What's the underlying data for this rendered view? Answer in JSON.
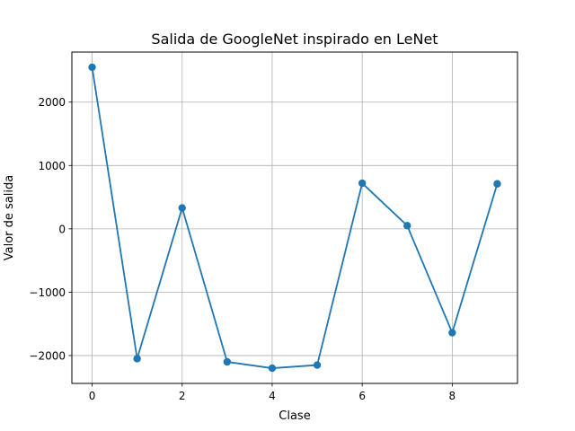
{
  "chart_data": {
    "type": "line",
    "title": "Salida de GoogleNet inspirado en LeNet",
    "xlabel": "Clase",
    "ylabel": "Valor de salida",
    "x": [
      0,
      1,
      2,
      3,
      4,
      5,
      6,
      7,
      8,
      9
    ],
    "series": [
      {
        "values": [
          2550,
          -2050,
          330,
          -2100,
          -2200,
          -2150,
          720,
          50,
          -1640,
          710
        ],
        "color": "#1f77b4",
        "marker": "circle"
      }
    ],
    "xlim": [
      -0.45,
      9.45
    ],
    "ylim": [
      -2440,
      2790
    ],
    "xticks": [
      0,
      2,
      4,
      6,
      8
    ],
    "xtick_labels": [
      "0",
      "2",
      "4",
      "6",
      "8"
    ],
    "yticks": [
      -2000,
      -1000,
      0,
      1000,
      2000
    ],
    "ytick_labels": [
      "−2000",
      "−1000",
      "0",
      "1000",
      "2000"
    ],
    "grid": true
  }
}
